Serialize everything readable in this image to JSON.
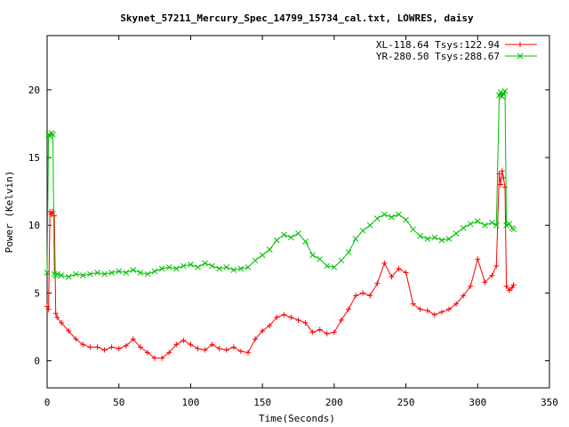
{
  "chart_data": {
    "type": "line",
    "title": "Skynet_57211_Mercury_Spec_14799_15734_cal.txt, LOWRES, daisy",
    "xlabel": "Time(Seconds)",
    "ylabel": "Power (Kelvin)",
    "xlim": [
      0,
      350
    ],
    "ylim": [
      -2,
      24
    ],
    "xticks": [
      0,
      50,
      100,
      150,
      200,
      250,
      300,
      350
    ],
    "yticks": [
      0,
      5,
      10,
      15,
      20
    ],
    "grid": false,
    "legend_position": "top-right",
    "series": [
      {
        "name": "XL-118.64 Tsys:122.94",
        "color": "#ff0000",
        "marker": "plus",
        "x": [
          0,
          1,
          2,
          3,
          4,
          5,
          6,
          7,
          10,
          15,
          20,
          25,
          30,
          35,
          40,
          45,
          50,
          55,
          60,
          65,
          70,
          75,
          80,
          85,
          90,
          95,
          100,
          105,
          110,
          115,
          120,
          125,
          130,
          135,
          140,
          145,
          150,
          155,
          160,
          165,
          170,
          175,
          180,
          185,
          190,
          195,
          200,
          205,
          210,
          215,
          220,
          225,
          230,
          235,
          240,
          245,
          250,
          255,
          260,
          265,
          270,
          275,
          280,
          285,
          290,
          295,
          300,
          305,
          310,
          313,
          315,
          316,
          317,
          318,
          319,
          320,
          322,
          324,
          325
        ],
        "values": [
          4.0,
          3.8,
          11.0,
          10.8,
          11.0,
          10.7,
          3.5,
          3.2,
          2.8,
          2.2,
          1.6,
          1.2,
          1.0,
          1.0,
          0.8,
          1.0,
          0.9,
          1.1,
          1.6,
          1.0,
          0.6,
          0.2,
          0.2,
          0.6,
          1.2,
          1.5,
          1.2,
          0.9,
          0.8,
          1.2,
          0.9,
          0.8,
          1.0,
          0.7,
          0.6,
          1.6,
          2.2,
          2.6,
          3.2,
          3.4,
          3.2,
          3.0,
          2.8,
          2.1,
          2.3,
          2.0,
          2.1,
          3.0,
          3.8,
          4.8,
          5.0,
          4.8,
          5.7,
          7.2,
          6.2,
          6.8,
          6.5,
          4.2,
          3.8,
          3.7,
          3.4,
          3.6,
          3.8,
          4.2,
          4.8,
          5.5,
          7.5,
          5.8,
          6.3,
          7.0,
          13.8,
          13.0,
          14.0,
          13.5,
          12.8,
          5.5,
          5.2,
          5.4,
          5.6
        ]
      },
      {
        "name": "YR-280.50 Tsys:288.67",
        "color": "#00c000",
        "marker": "cross",
        "x": [
          0,
          1,
          2,
          3,
          4,
          5,
          6,
          7,
          10,
          15,
          20,
          25,
          30,
          35,
          40,
          45,
          50,
          55,
          60,
          65,
          70,
          75,
          80,
          85,
          90,
          95,
          100,
          105,
          110,
          115,
          120,
          125,
          130,
          135,
          140,
          145,
          150,
          155,
          160,
          165,
          170,
          175,
          180,
          185,
          190,
          195,
          200,
          205,
          210,
          215,
          220,
          225,
          230,
          235,
          240,
          245,
          250,
          255,
          260,
          265,
          270,
          275,
          280,
          285,
          290,
          295,
          300,
          305,
          310,
          313,
          315,
          316,
          317,
          318,
          319,
          320,
          322,
          324,
          325
        ],
        "values": [
          6.5,
          16.7,
          16.6,
          16.8,
          16.7,
          6.4,
          6.3,
          6.4,
          6.3,
          6.2,
          6.4,
          6.3,
          6.4,
          6.5,
          6.4,
          6.5,
          6.6,
          6.5,
          6.7,
          6.5,
          6.4,
          6.6,
          6.8,
          6.9,
          6.8,
          7.0,
          7.1,
          6.9,
          7.2,
          7.0,
          6.8,
          6.9,
          6.7,
          6.8,
          6.9,
          7.4,
          7.8,
          8.2,
          8.9,
          9.3,
          9.1,
          9.4,
          8.8,
          7.8,
          7.5,
          7.0,
          6.9,
          7.4,
          8.0,
          9.0,
          9.6,
          10.0,
          10.5,
          10.8,
          10.6,
          10.8,
          10.4,
          9.7,
          9.2,
          9.0,
          9.1,
          8.9,
          9.0,
          9.4,
          9.8,
          10.1,
          10.3,
          10.0,
          10.2,
          10.0,
          19.6,
          19.8,
          19.5,
          19.7,
          19.9,
          10.0,
          10.1,
          9.8,
          9.7
        ]
      }
    ]
  }
}
